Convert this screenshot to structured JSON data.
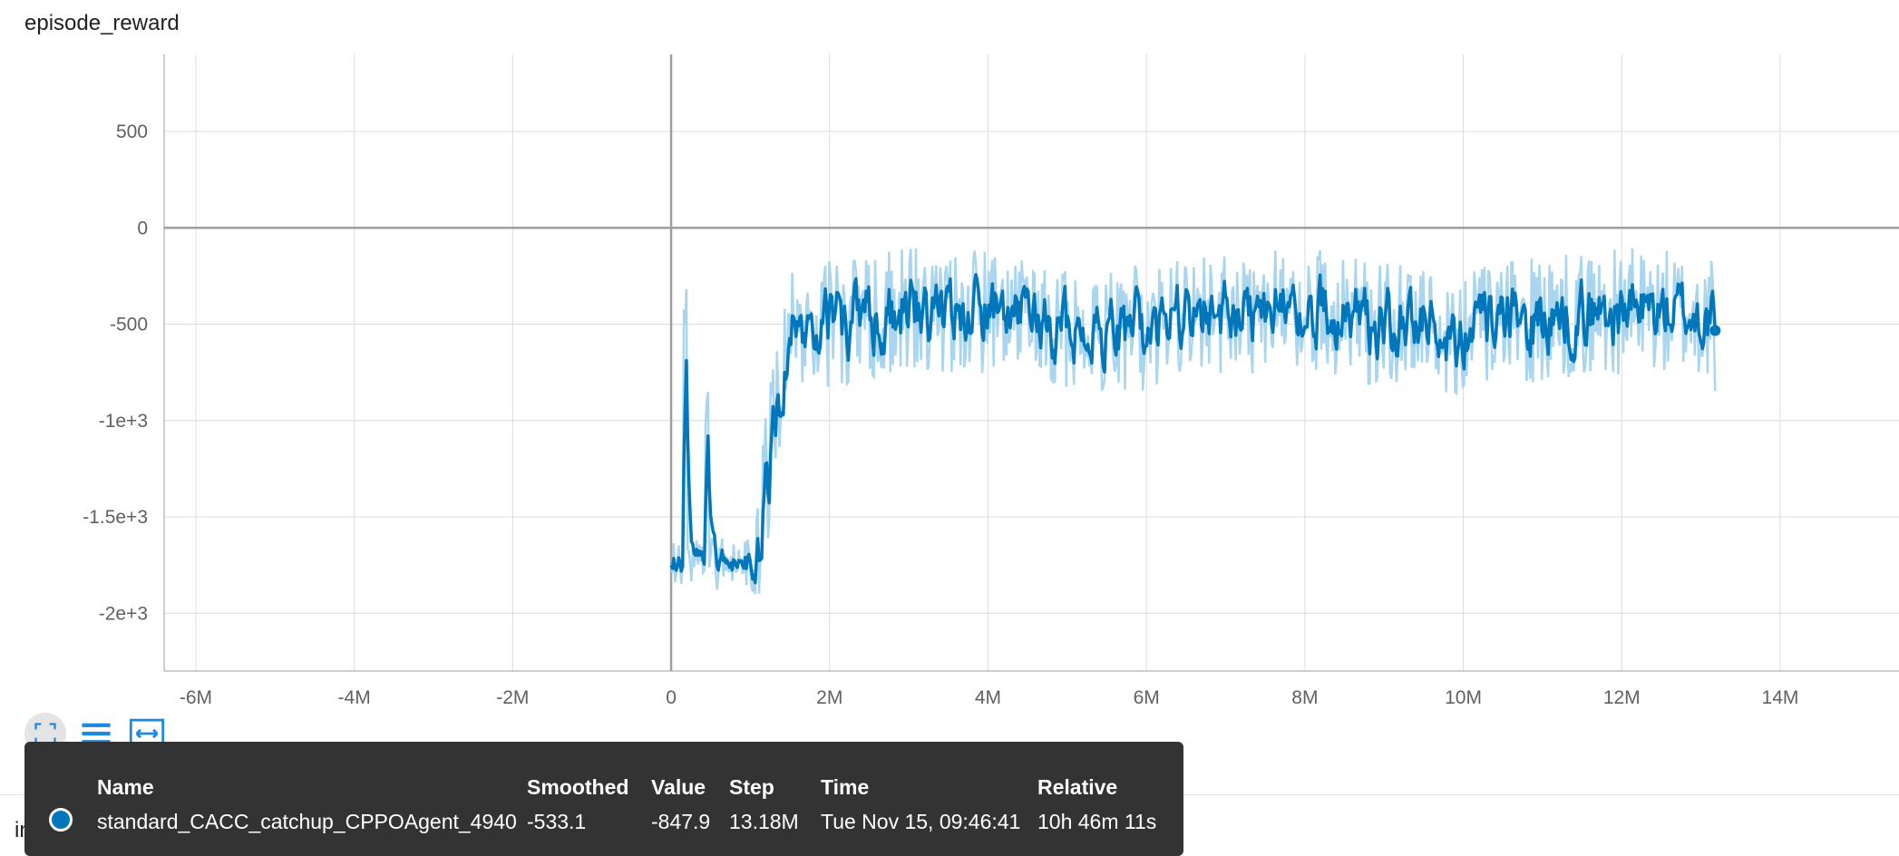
{
  "chart_data": {
    "type": "line",
    "title": "episode_reward",
    "xlabel": "",
    "ylabel": "",
    "xlim": [
      -6400000,
      15500000
    ],
    "ylim": [
      -2300000000,
      900
    ],
    "xticks": [
      -6000000,
      -4000000,
      -2000000,
      0,
      2000000,
      4000000,
      6000000,
      8000000,
      10000000,
      12000000,
      14000000
    ],
    "xtick_labels": [
      "-6M",
      "-4M",
      "-2M",
      "0",
      "2M",
      "4M",
      "6M",
      "8M",
      "10M",
      "12M",
      "14M"
    ],
    "yticks": [
      500,
      0,
      -500,
      -1000,
      -1500,
      -2000
    ],
    "ytick_labels": [
      "500",
      "0",
      "-500",
      "-1e+3",
      "-1.5e+3",
      "-2e+3"
    ],
    "grid": true,
    "series": [
      {
        "name": "standard_CACC_catchup_CPPOAgent_4940",
        "color": "#0077bb",
        "raw_color": "#a9d6ee",
        "x_start": 0,
        "x_end": 13180000,
        "smoothed_last": -533.1,
        "value_last": -847.9
      }
    ]
  },
  "toolbar": {
    "icons": [
      "fullscreen-icon",
      "list-icon",
      "fit-domain-icon"
    ],
    "accent": "#1e88e5"
  },
  "tooltip": {
    "headers": {
      "name": "Name",
      "smoothed": "Smoothed",
      "value": "Value",
      "step": "Step",
      "time": "Time",
      "relative": "Relative"
    },
    "row": {
      "name": "standard_CACC_catchup_CPPOAgent_4940",
      "smoothed": "-533.1",
      "value": "-847.9",
      "step": "13.18M",
      "time": "Tue Nov 15, 09:46:41",
      "relative": "10h 46m 11s",
      "color": "#0077bb"
    }
  },
  "next_card": {
    "title": "inner_iter"
  }
}
